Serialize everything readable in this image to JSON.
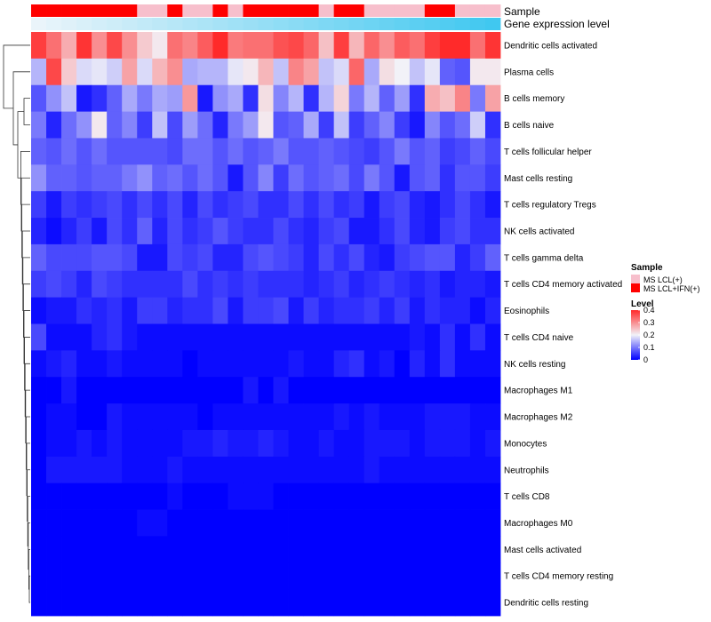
{
  "chart_data": {
    "type": "heatmap",
    "annotation_labels": {
      "sample": "Sample",
      "gene_expression": "Gene expression level"
    },
    "sample_groups": [
      "MS LCL(+)",
      "MS LCL+IFN(+)"
    ],
    "sample_colors": {
      "MS LCL(+)": "#f7bfcc",
      "MS LCL+IFN(+)": "#ff0000"
    },
    "samples": [
      1,
      1,
      1,
      1,
      1,
      1,
      1,
      0,
      0,
      1,
      0,
      0,
      1,
      0,
      1,
      1,
      1,
      1,
      1,
      0,
      1,
      1,
      0,
      0,
      0,
      0,
      1,
      1,
      0,
      0,
      0
    ],
    "gene_expression_gradient": [
      "#eaf4fa",
      "#40c8f0"
    ],
    "rows": [
      "Dendritic cells activated",
      "Plasma cells",
      "B cells memory",
      "B cells naive",
      "T cells follicular helper",
      "Mast cells resting",
      "T cells regulatory  Tregs",
      "NK cells activated",
      "T cells gamma delta",
      "T cells CD4 memory activated",
      "Eosinophils",
      "T cells CD4 naive",
      "NK cells resting",
      "Macrophages M1",
      "Macrophages M2",
      "Monocytes",
      "Neutrophils",
      "T cells CD8",
      "Macrophages M0",
      "Mast cells activated",
      "T cells CD4 memory resting",
      "Dendritic cells resting"
    ],
    "values": [
      [
        0.38,
        0.33,
        0.27,
        0.39,
        0.3,
        0.37,
        0.3,
        0.24,
        0.21,
        0.33,
        0.31,
        0.35,
        0.4,
        0.32,
        0.33,
        0.33,
        0.36,
        0.37,
        0.34,
        0.25,
        0.38,
        0.26,
        0.34,
        0.3,
        0.35,
        0.33,
        0.38,
        0.4,
        0.4,
        0.33,
        0.39
      ],
      [
        0.15,
        0.37,
        0.24,
        0.18,
        0.19,
        0.17,
        0.28,
        0.18,
        0.26,
        0.3,
        0.14,
        0.15,
        0.15,
        0.19,
        0.21,
        0.26,
        0.16,
        0.31,
        0.28,
        0.16,
        0.18,
        0.34,
        0.14,
        0.22,
        0.2,
        0.16,
        0.19,
        0.08,
        0.07,
        0.21,
        0.21
      ],
      [
        0.07,
        0.12,
        0.16,
        0.02,
        0.04,
        0.08,
        0.14,
        0.1,
        0.14,
        0.13,
        0.29,
        0.02,
        0.12,
        0.14,
        0.04,
        0.22,
        0.11,
        0.15,
        0.04,
        0.15,
        0.23,
        0.1,
        0.15,
        0.08,
        0.13,
        0.04,
        0.27,
        0.25,
        0.31,
        0.1,
        0.28
      ],
      [
        0.1,
        0.03,
        0.09,
        0.12,
        0.21,
        0.08,
        0.11,
        0.05,
        0.16,
        0.06,
        0.13,
        0.09,
        0.03,
        0.1,
        0.13,
        0.21,
        0.07,
        0.08,
        0.14,
        0.05,
        0.16,
        0.05,
        0.08,
        0.11,
        0.05,
        0.02,
        0.11,
        0.07,
        0.09,
        0.17,
        0.04
      ],
      [
        0.08,
        0.07,
        0.09,
        0.07,
        0.09,
        0.07,
        0.07,
        0.07,
        0.07,
        0.06,
        0.09,
        0.09,
        0.07,
        0.09,
        0.07,
        0.08,
        0.1,
        0.07,
        0.07,
        0.08,
        0.07,
        0.06,
        0.05,
        0.07,
        0.1,
        0.07,
        0.08,
        0.05,
        0.06,
        0.08,
        0.06
      ],
      [
        0.12,
        0.08,
        0.08,
        0.07,
        0.08,
        0.08,
        0.1,
        0.12,
        0.08,
        0.09,
        0.07,
        0.09,
        0.07,
        0.02,
        0.07,
        0.11,
        0.05,
        0.09,
        0.07,
        0.08,
        0.09,
        0.06,
        0.1,
        0.07,
        0.02,
        0.07,
        0.08,
        0.04,
        0.07,
        0.07,
        0.05
      ],
      [
        0.05,
        0.02,
        0.05,
        0.04,
        0.05,
        0.06,
        0.04,
        0.06,
        0.04,
        0.06,
        0.03,
        0.06,
        0.04,
        0.05,
        0.06,
        0.04,
        0.04,
        0.06,
        0.04,
        0.06,
        0.04,
        0.05,
        0.02,
        0.05,
        0.06,
        0.03,
        0.02,
        0.04,
        0.06,
        0.04,
        0.02
      ],
      [
        0.03,
        0.01,
        0.03,
        0.05,
        0.02,
        0.06,
        0.04,
        0.08,
        0.03,
        0.06,
        0.04,
        0.05,
        0.07,
        0.05,
        0.04,
        0.04,
        0.06,
        0.04,
        0.03,
        0.05,
        0.06,
        0.02,
        0.02,
        0.04,
        0.06,
        0.03,
        0.02,
        0.05,
        0.06,
        0.04,
        0.04
      ],
      [
        0.08,
        0.06,
        0.06,
        0.06,
        0.07,
        0.07,
        0.06,
        0.02,
        0.02,
        0.06,
        0.05,
        0.06,
        0.03,
        0.03,
        0.06,
        0.07,
        0.06,
        0.05,
        0.03,
        0.06,
        0.04,
        0.06,
        0.03,
        0.02,
        0.05,
        0.06,
        0.07,
        0.07,
        0.03,
        0.05,
        0.08
      ],
      [
        0.05,
        0.06,
        0.05,
        0.03,
        0.06,
        0.05,
        0.04,
        0.04,
        0.04,
        0.04,
        0.06,
        0.04,
        0.05,
        0.04,
        0.05,
        0.04,
        0.04,
        0.04,
        0.03,
        0.04,
        0.05,
        0.03,
        0.04,
        0.05,
        0.04,
        0.03,
        0.04,
        0.02,
        0.03,
        0.03,
        0.02
      ],
      [
        0.01,
        0.02,
        0.02,
        0.04,
        0.03,
        0.04,
        0.02,
        0.05,
        0.05,
        0.03,
        0.04,
        0.04,
        0.06,
        0.02,
        0.05,
        0.05,
        0.06,
        0.02,
        0.05,
        0.03,
        0.04,
        0.04,
        0.05,
        0.03,
        0.05,
        0.02,
        0.04,
        0.03,
        0.03,
        0.01,
        0.03
      ],
      [
        0.06,
        0.01,
        0.01,
        0.01,
        0.03,
        0.04,
        0.02,
        0.01,
        0.01,
        0.01,
        0.01,
        0.01,
        0.01,
        0.01,
        0.01,
        0.01,
        0.01,
        0.01,
        0.01,
        0.01,
        0.01,
        0.01,
        0.01,
        0.01,
        0.01,
        0.02,
        0.01,
        0.04,
        0.01,
        0.04,
        0.01
      ],
      [
        0.01,
        0.02,
        0.03,
        0.01,
        0.01,
        0.02,
        0.01,
        0.01,
        0.01,
        0.01,
        0.0,
        0.01,
        0.01,
        0.01,
        0.01,
        0.01,
        0.01,
        0.02,
        0.01,
        0.01,
        0.03,
        0.04,
        0.01,
        0.02,
        0.0,
        0.03,
        0.01,
        0.04,
        0.01,
        0.01,
        0.01
      ],
      [
        0.0,
        0.0,
        0.02,
        0.0,
        0.0,
        0.0,
        0.0,
        0.0,
        0.0,
        0.0,
        0.0,
        0.0,
        0.0,
        0.0,
        0.02,
        0.0,
        0.02,
        0.0,
        0.0,
        0.0,
        0.0,
        0.0,
        0.0,
        0.0,
        0.0,
        0.0,
        0.0,
        0.0,
        0.0,
        0.0,
        0.0
      ],
      [
        0.0,
        0.01,
        0.01,
        0.0,
        0.0,
        0.02,
        0.01,
        0.01,
        0.01,
        0.01,
        0.01,
        0.0,
        0.01,
        0.01,
        0.01,
        0.01,
        0.01,
        0.01,
        0.01,
        0.01,
        0.02,
        0.01,
        0.02,
        0.01,
        0.01,
        0.01,
        0.02,
        0.02,
        0.02,
        0.01,
        0.01
      ],
      [
        0.0,
        0.01,
        0.01,
        0.02,
        0.01,
        0.02,
        0.01,
        0.01,
        0.01,
        0.01,
        0.02,
        0.02,
        0.03,
        0.02,
        0.02,
        0.03,
        0.02,
        0.01,
        0.01,
        0.02,
        0.01,
        0.01,
        0.02,
        0.02,
        0.02,
        0.01,
        0.02,
        0.02,
        0.02,
        0.01,
        0.02
      ],
      [
        0.0,
        0.02,
        0.02,
        0.02,
        0.02,
        0.02,
        0.01,
        0.01,
        0.01,
        0.02,
        0.01,
        0.01,
        0.01,
        0.01,
        0.01,
        0.01,
        0.01,
        0.01,
        0.01,
        0.01,
        0.01,
        0.01,
        0.02,
        0.01,
        0.01,
        0.01,
        0.01,
        0.01,
        0.01,
        0.01,
        0.01
      ],
      [
        0.0,
        0.0,
        0.0,
        0.0,
        0.0,
        0.0,
        0.0,
        0.0,
        0.0,
        0.01,
        0.0,
        0.0,
        0.0,
        0.01,
        0.01,
        0.01,
        0.0,
        0.0,
        0.0,
        0.0,
        0.0,
        0.0,
        0.0,
        0.0,
        0.0,
        0.0,
        0.0,
        0.0,
        0.0,
        0.0,
        0.0
      ],
      [
        0.0,
        0.0,
        0.0,
        0.0,
        0.0,
        0.0,
        0.0,
        0.01,
        0.01,
        0.0,
        0.0,
        0.0,
        0.0,
        0.0,
        0.0,
        0.0,
        0.0,
        0.0,
        0.0,
        0.0,
        0.0,
        0.0,
        0.0,
        0.0,
        0.0,
        0.0,
        0.0,
        0.0,
        0.0,
        0.0,
        0.0
      ],
      [
        0.0,
        0.0,
        0.0,
        0.0,
        0.0,
        0.0,
        0.0,
        0.0,
        0.0,
        0.0,
        0.0,
        0.0,
        0.0,
        0.0,
        0.0,
        0.0,
        0.0,
        0.0,
        0.0,
        0.0,
        0.0,
        0.0,
        0.0,
        0.0,
        0.0,
        0.0,
        0.0,
        0.0,
        0.0,
        0.0,
        0.0
      ],
      [
        0.0,
        0.0,
        0.0,
        0.0,
        0.0,
        0.0,
        0.0,
        0.0,
        0.0,
        0.0,
        0.0,
        0.0,
        0.0,
        0.0,
        0.0,
        0.0,
        0.0,
        0.0,
        0.0,
        0.0,
        0.0,
        0.0,
        0.0,
        0.0,
        0.0,
        0.0,
        0.0,
        0.0,
        0.0,
        0.0,
        0.0
      ],
      [
        0.0,
        0.0,
        0.0,
        0.0,
        0.0,
        0.0,
        0.0,
        0.0,
        0.0,
        0.0,
        0.0,
        0.0,
        0.0,
        0.0,
        0.0,
        0.0,
        0.0,
        0.0,
        0.0,
        0.0,
        0.0,
        0.0,
        0.0,
        0.0,
        0.0,
        0.0,
        0.0,
        0.0,
        0.0,
        0.0,
        0.0
      ]
    ],
    "value_range": [
      0,
      0.4
    ],
    "color_scale": [
      "#0000ff",
      "#f2f2f8",
      "#ff2a2a"
    ],
    "legend": {
      "sample_title": "Sample",
      "level_title": "Level",
      "ticks": [
        "0.4",
        "0.3",
        "0.2",
        "0.1",
        "0"
      ],
      "tick_values": [
        0.4,
        0.3,
        0.2,
        0.1,
        0
      ]
    }
  }
}
